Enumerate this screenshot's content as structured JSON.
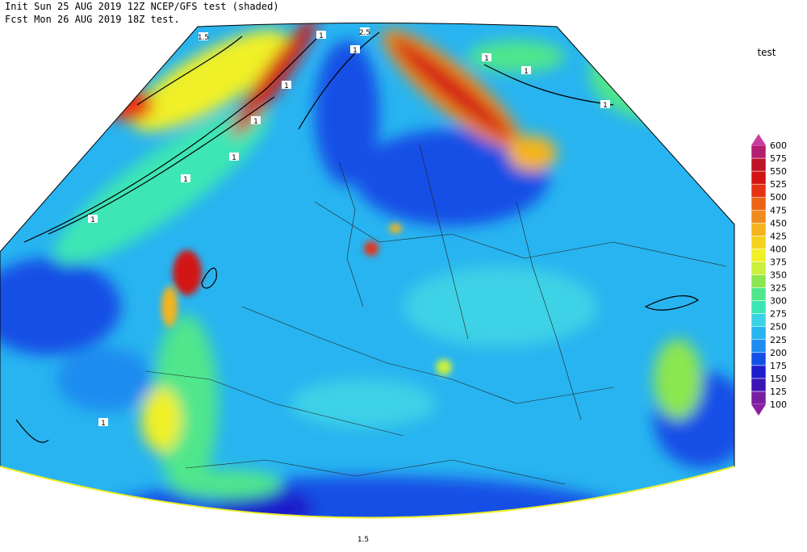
{
  "header": {
    "line1": "Init  Sun 25 AUG 2019 12Z  NCEP/GFS test (shaded)",
    "line2": "Fcst Mon 26 AUG 2019 18Z  test."
  },
  "legend": {
    "title": "test",
    "levels": [
      100,
      125,
      150,
      175,
      200,
      225,
      250,
      275,
      300,
      325,
      350,
      375,
      400,
      425,
      450,
      475,
      500,
      525,
      550,
      575,
      600
    ],
    "colors": [
      "#8c1ea0",
      "#7b1fa2",
      "#3c14b4",
      "#1e1ecc",
      "#1450e6",
      "#1e8cf0",
      "#28b4f0",
      "#3cd2e6",
      "#3ce6b4",
      "#50e68c",
      "#8ce650",
      "#c8f03c",
      "#f0f028",
      "#f5d21e",
      "#f5b41e",
      "#f08c1e",
      "#eb6414",
      "#e63214",
      "#d21414",
      "#be1428",
      "#b41e6e",
      "#c83ca0"
    ]
  },
  "contour_labels": [
    "1.5",
    "2.5",
    "1",
    "1",
    "1",
    "1",
    "1",
    "1",
    "1",
    "1",
    "1",
    "1",
    "1",
    "1.5"
  ]
}
